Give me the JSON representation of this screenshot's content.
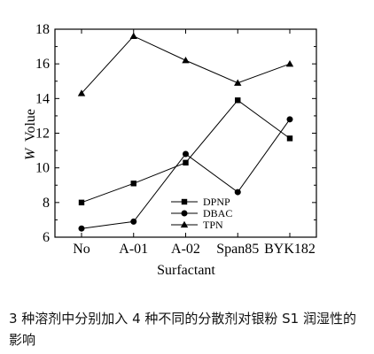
{
  "chart_data": {
    "type": "line",
    "categories": [
      "No",
      "A-01",
      "A-02",
      "Span85",
      "BYK182"
    ],
    "series": [
      {
        "name": "DPNP",
        "marker": "square",
        "values": [
          8.0,
          9.1,
          10.3,
          13.9,
          11.7
        ]
      },
      {
        "name": "DBAC",
        "marker": "circle",
        "values": [
          6.5,
          6.9,
          10.8,
          8.6,
          12.8
        ]
      },
      {
        "name": "TPN",
        "marker": "triangle",
        "values": [
          14.3,
          17.6,
          16.2,
          14.9,
          16.0
        ]
      }
    ],
    "title": "",
    "xlabel": "Surfactant",
    "ylabel_italic": "W",
    "ylabel_rest": "Volue",
    "ylim": [
      6,
      18
    ],
    "yticks": [
      6,
      8,
      10,
      12,
      14,
      16,
      18
    ],
    "ytick_labels": [
      "6",
      "8",
      "10",
      "12",
      "14",
      "16",
      "18"
    ],
    "grid": false,
    "legend_position": "bottom-right"
  },
  "caption": "3 种溶剂中分别加入 4 种不同的分散剂对银粉 S1 润湿性的影响",
  "colors": {
    "line": "#000000",
    "background": "#ffffff"
  }
}
